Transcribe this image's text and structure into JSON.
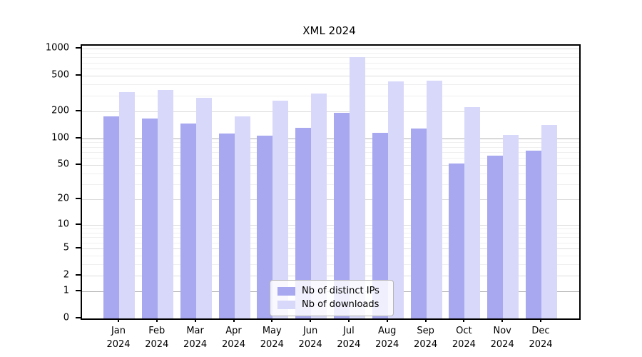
{
  "chart_data": {
    "type": "bar",
    "title": "XML 2024",
    "year": "2024",
    "months": [
      "Jan",
      "Feb",
      "Mar",
      "Apr",
      "May",
      "Jun",
      "Jul",
      "Aug",
      "Sep",
      "Oct",
      "Nov",
      "Dec"
    ],
    "categories": [
      "Jan 2024",
      "Feb 2024",
      "Mar 2024",
      "Apr 2024",
      "May 2024",
      "Jun 2024",
      "Jul 2024",
      "Aug 2024",
      "Sep 2024",
      "Oct 2024",
      "Nov 2024",
      "Dec 2024"
    ],
    "series": [
      {
        "name": "Nb of distinct IPs",
        "color": "#a8a8f0",
        "values": [
          175,
          166,
          145,
          113,
          106,
          130,
          191,
          114,
          128,
          52,
          64,
          72
        ]
      },
      {
        "name": "Nb of downloads",
        "color": "#d8d8fa",
        "values": [
          330,
          344,
          284,
          176,
          263,
          315,
          808,
          433,
          441,
          222,
          108,
          142
        ]
      }
    ],
    "y_ticks": [
      0,
      1,
      2,
      5,
      10,
      20,
      50,
      100,
      200,
      500,
      1000
    ],
    "y_scale": "log10(1+v)",
    "y_max": 1000,
    "xlabel": "",
    "ylabel": "",
    "legend_position": "bottom-center",
    "grid": true,
    "colors": {
      "grid_strong": "#b0b0b0",
      "grid_medium": "#dcdcdc",
      "grid_faint": "#efefef",
      "axis": "#000000",
      "background": "#ffffff"
    }
  }
}
